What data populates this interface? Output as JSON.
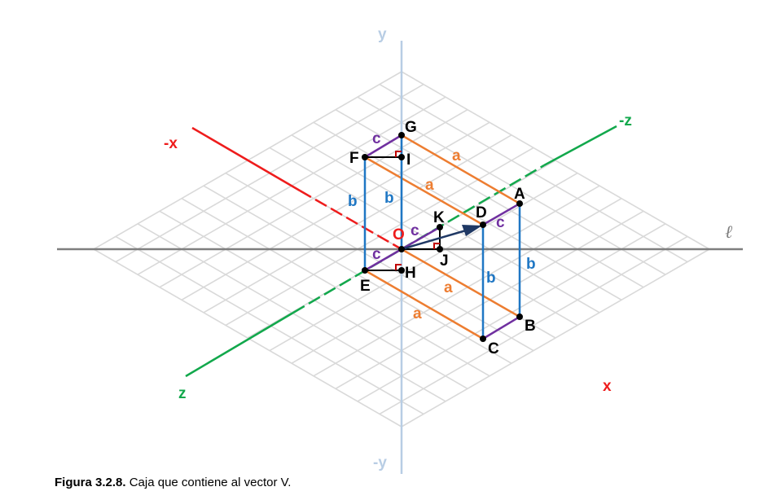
{
  "colors": {
    "grid": "#d9d9d9",
    "y_axis": "#b8cde4",
    "l_axis": "#7f7f7f",
    "x_axis": "#ee1c1c",
    "z_axis": "#12a84c",
    "edge_a": "#ed7d31",
    "edge_b": "#1f77c4",
    "edge_c": "#7030a0",
    "vector": "#1f3864",
    "right_angle": "#c00000",
    "point": "#000000"
  },
  "axes": {
    "y": "y",
    "neg_y": "-y",
    "x": "x",
    "neg_x": "-x",
    "z": "z",
    "neg_z": "-z",
    "l": "ℓ"
  },
  "points": {
    "O": "O",
    "A": "A",
    "B": "B",
    "C": "C",
    "D": "D",
    "E": "E",
    "F": "F",
    "G": "G",
    "H": "H",
    "I": "I",
    "J": "J",
    "K": "K"
  },
  "edges": {
    "a": "a",
    "b": "b",
    "c": "c"
  },
  "caption": {
    "label": "Figura 3.2.8.",
    "text": " Caja que contiene al vector V."
  }
}
